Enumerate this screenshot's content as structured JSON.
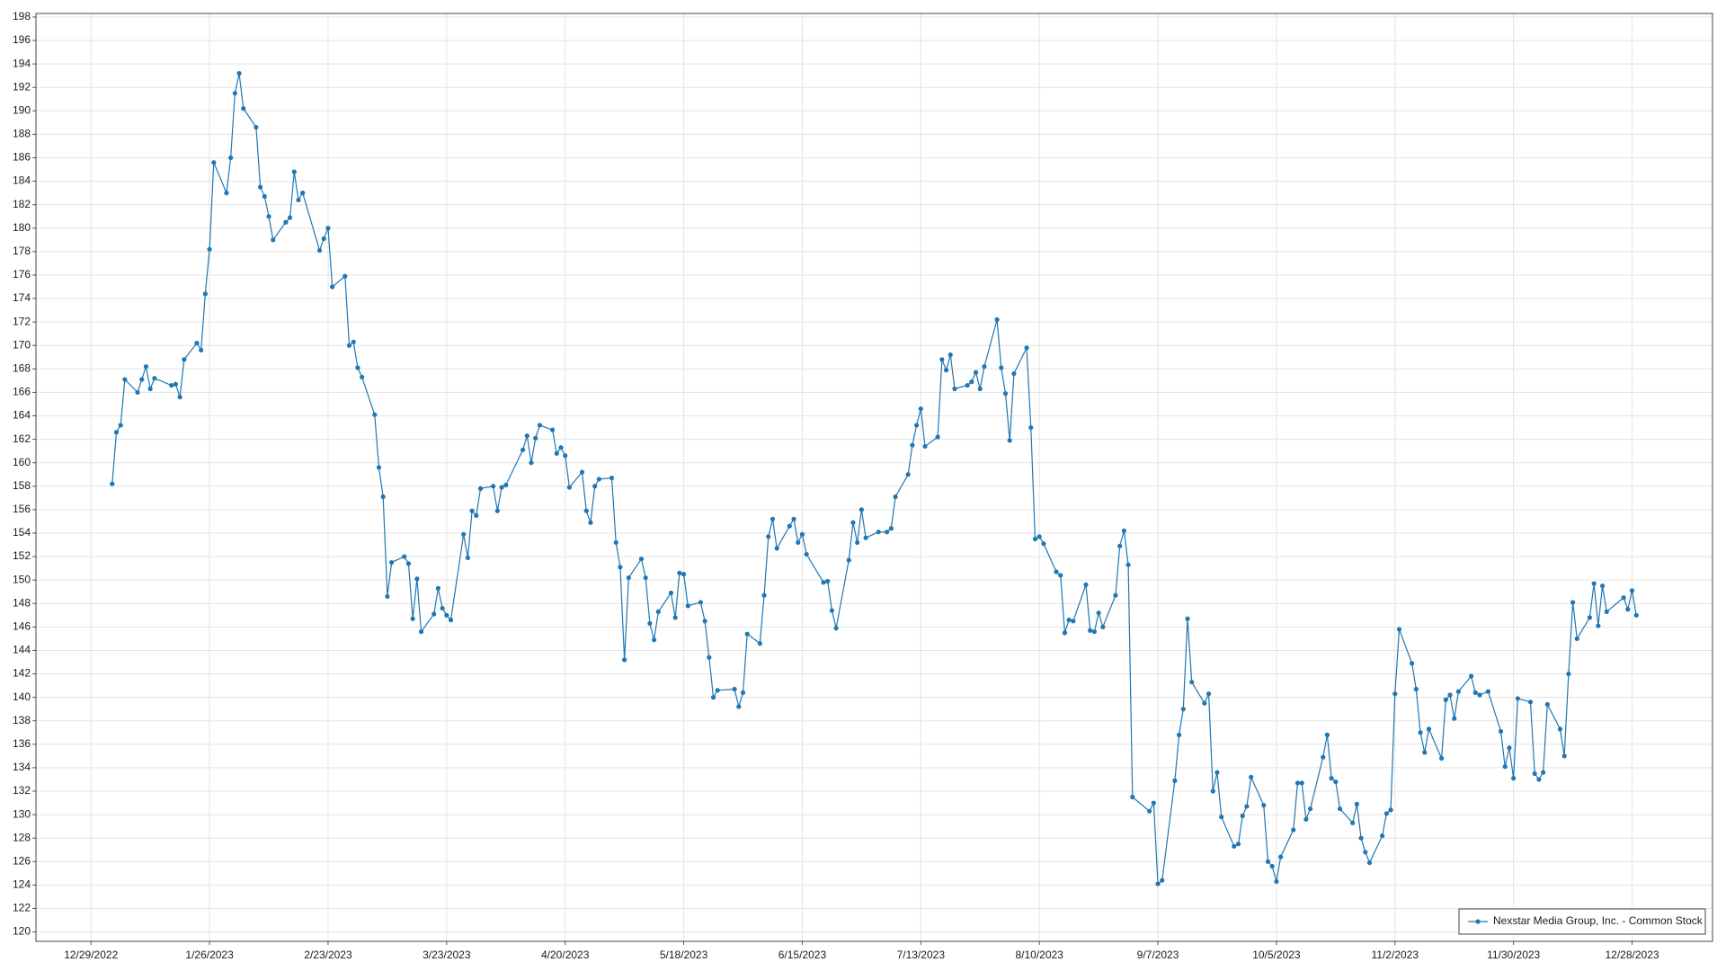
{
  "chart_data": {
    "type": "line",
    "x": [
      "1/3/2023",
      "1/4/2023",
      "1/5/2023",
      "1/6/2023",
      "1/9/2023",
      "1/10/2023",
      "1/11/2023",
      "1/12/2023",
      "1/13/2023",
      "1/17/2023",
      "1/18/2023",
      "1/19/2023",
      "1/20/2023",
      "1/23/2023",
      "1/24/2023",
      "1/25/2023",
      "1/26/2023",
      "1/27/2023",
      "1/30/2023",
      "1/31/2023",
      "2/1/2023",
      "2/2/2023",
      "2/3/2023",
      "2/6/2023",
      "2/7/2023",
      "2/8/2023",
      "2/9/2023",
      "2/10/2023",
      "2/13/2023",
      "2/14/2023",
      "2/15/2023",
      "2/16/2023",
      "2/17/2023",
      "2/21/2023",
      "2/22/2023",
      "2/23/2023",
      "2/24/2023",
      "2/27/2023",
      "2/28/2023",
      "3/1/2023",
      "3/2/2023",
      "3/3/2023",
      "3/6/2023",
      "3/7/2023",
      "3/8/2023",
      "3/9/2023",
      "3/10/2023",
      "3/13/2023",
      "3/14/2023",
      "3/15/2023",
      "3/16/2023",
      "3/17/2023",
      "3/20/2023",
      "3/21/2023",
      "3/22/2023",
      "3/23/2023",
      "3/24/2023",
      "3/27/2023",
      "3/28/2023",
      "3/29/2023",
      "3/30/2023",
      "3/31/2023",
      "4/3/2023",
      "4/4/2023",
      "4/5/2023",
      "4/6/2023",
      "4/10/2023",
      "4/11/2023",
      "4/12/2023",
      "4/13/2023",
      "4/14/2023",
      "4/17/2023",
      "4/18/2023",
      "4/19/2023",
      "4/20/2023",
      "4/21/2023",
      "4/24/2023",
      "4/25/2023",
      "4/26/2023",
      "4/27/2023",
      "4/28/2023",
      "5/1/2023",
      "5/2/2023",
      "5/3/2023",
      "5/4/2023",
      "5/5/2023",
      "5/8/2023",
      "5/9/2023",
      "5/10/2023",
      "5/11/2023",
      "5/12/2023",
      "5/15/2023",
      "5/16/2023",
      "5/17/2023",
      "5/18/2023",
      "5/19/2023",
      "5/22/2023",
      "5/23/2023",
      "5/24/2023",
      "5/25/2023",
      "5/26/2023",
      "5/30/2023",
      "5/31/2023",
      "6/1/2023",
      "6/2/2023",
      "6/5/2023",
      "6/6/2023",
      "6/7/2023",
      "6/8/2023",
      "6/9/2023",
      "6/12/2023",
      "6/13/2023",
      "6/14/2023",
      "6/15/2023",
      "6/16/2023",
      "6/20/2023",
      "6/21/2023",
      "6/22/2023",
      "6/23/2023",
      "6/26/2023",
      "6/27/2023",
      "6/28/2023",
      "6/29/2023",
      "6/30/2023",
      "7/3/2023",
      "7/5/2023",
      "7/6/2023",
      "7/7/2023",
      "7/10/2023",
      "7/11/2023",
      "7/12/2023",
      "7/13/2023",
      "7/14/2023",
      "7/17/2023",
      "7/18/2023",
      "7/19/2023",
      "7/20/2023",
      "7/21/2023",
      "7/24/2023",
      "7/25/2023",
      "7/26/2023",
      "7/27/2023",
      "7/28/2023",
      "7/31/2023",
      "8/1/2023",
      "8/2/2023",
      "8/3/2023",
      "8/4/2023",
      "8/7/2023",
      "8/8/2023",
      "8/9/2023",
      "8/10/2023",
      "8/11/2023",
      "8/14/2023",
      "8/15/2023",
      "8/16/2023",
      "8/17/2023",
      "8/18/2023",
      "8/21/2023",
      "8/22/2023",
      "8/23/2023",
      "8/24/2023",
      "8/25/2023",
      "8/28/2023",
      "8/29/2023",
      "8/30/2023",
      "8/31/2023",
      "9/1/2023",
      "9/5/2023",
      "9/6/2023",
      "9/7/2023",
      "9/8/2023",
      "9/11/2023",
      "9/12/2023",
      "9/13/2023",
      "9/14/2023",
      "9/15/2023",
      "9/18/2023",
      "9/19/2023",
      "9/20/2023",
      "9/21/2023",
      "9/22/2023",
      "9/25/2023",
      "9/26/2023",
      "9/27/2023",
      "9/28/2023",
      "9/29/2023",
      "10/2/2023",
      "10/3/2023",
      "10/4/2023",
      "10/5/2023",
      "10/6/2023",
      "10/9/2023",
      "10/10/2023",
      "10/11/2023",
      "10/12/2023",
      "10/13/2023",
      "10/16/2023",
      "10/17/2023",
      "10/18/2023",
      "10/19/2023",
      "10/20/2023",
      "10/23/2023",
      "10/24/2023",
      "10/25/2023",
      "10/26/2023",
      "10/27/2023",
      "10/30/2023",
      "10/31/2023",
      "11/1/2023",
      "11/2/2023",
      "11/3/2023",
      "11/6/2023",
      "11/7/2023",
      "11/8/2023",
      "11/9/2023",
      "11/10/2023",
      "11/13/2023",
      "11/14/2023",
      "11/15/2023",
      "11/16/2023",
      "11/17/2023",
      "11/20/2023",
      "11/21/2023",
      "11/22/2023",
      "11/24/2023",
      "11/27/2023",
      "11/28/2023",
      "11/29/2023",
      "11/30/2023",
      "12/1/2023",
      "12/4/2023",
      "12/5/2023",
      "12/6/2023",
      "12/7/2023",
      "12/8/2023",
      "12/11/2023",
      "12/12/2023",
      "12/13/2023",
      "12/14/2023",
      "12/15/2023",
      "12/18/2023",
      "12/19/2023",
      "12/20/2023",
      "12/21/2023",
      "12/22/2023",
      "12/26/2023",
      "12/27/2023",
      "12/28/2023",
      "12/29/2023"
    ],
    "series": [
      {
        "name": "Nexstar Media Group, Inc. - Common Stock",
        "color": "#1f77b4",
        "values": [
          158.2,
          162.6,
          163.2,
          167.1,
          166,
          167.1,
          168.2,
          166.3,
          167.2,
          166.6,
          166.7,
          165.6,
          168.8,
          170.2,
          169.6,
          174.4,
          178.2,
          185.6,
          183,
          186,
          191.5,
          193.2,
          190.2,
          188.6,
          183.5,
          182.7,
          181,
          179,
          180.5,
          180.9,
          184.8,
          182.4,
          183,
          178.1,
          179.1,
          180,
          175,
          175.9,
          170,
          170.3,
          168.1,
          167.3,
          164.1,
          159.6,
          157.1,
          148.6,
          151.5,
          152,
          151.4,
          146.7,
          150.1,
          145.6,
          147.1,
          149.3,
          147.6,
          147,
          146.6,
          153.9,
          151.9,
          155.9,
          155.5,
          157.8,
          158,
          155.9,
          157.9,
          158.1,
          161.1,
          162.3,
          160,
          162.1,
          163.2,
          162.8,
          160.8,
          161.3,
          160.6,
          157.9,
          159.2,
          155.9,
          154.9,
          158,
          158.6,
          158.7,
          153.2,
          151.1,
          143.2,
          150.2,
          151.8,
          150.2,
          146.3,
          144.9,
          147.3,
          148.9,
          146.8,
          150.6,
          150.5,
          147.8,
          148.1,
          146.5,
          143.4,
          140,
          140.6,
          140.7,
          139.2,
          140.4,
          145.4,
          144.6,
          148.7,
          153.7,
          155.2,
          152.7,
          154.6,
          155.2,
          153.2,
          153.9,
          152.2,
          149.8,
          149.9,
          147.4,
          145.9,
          151.7,
          154.9,
          153.2,
          156,
          153.6,
          154.1,
          154.1,
          154.4,
          157.1,
          159,
          161.5,
          163.2,
          164.6,
          161.4,
          162.2,
          168.8,
          167.9,
          169.2,
          166.3,
          166.6,
          166.9,
          167.7,
          166.3,
          168.2,
          172.2,
          168.1,
          165.9,
          161.9,
          167.6,
          169.8,
          163,
          153.5,
          153.7,
          153.1,
          150.7,
          150.4,
          145.5,
          146.6,
          146.5,
          149.6,
          145.7,
          145.6,
          147.2,
          146,
          148.7,
          152.9,
          154.2,
          151.3,
          131.5,
          130.3,
          131,
          124.1,
          124.4,
          132.9,
          136.8,
          139,
          146.7,
          141.3,
          139.5,
          140.3,
          132,
          133.6,
          129.8,
          127.3,
          127.5,
          129.9,
          130.7,
          133.2,
          130.8,
          126,
          125.6,
          124.3,
          126.4,
          128.7,
          132.7,
          132.7,
          129.6,
          130.5,
          134.9,
          136.8,
          133.1,
          132.8,
          130.5,
          129.3,
          130.9,
          128,
          126.8,
          125.9,
          128.2,
          130.1,
          130.4,
          140.3,
          145.8,
          142.9,
          140.7,
          137,
          135.3,
          137.3,
          134.8,
          139.8,
          140.2,
          138.2,
          140.5,
          141.8,
          140.4,
          140.2,
          140.5,
          137.1,
          134.1,
          135.7,
          133.1,
          139.9,
          139.6,
          133.5,
          133,
          133.6,
          139.4,
          137.3,
          135,
          142,
          148.1,
          145,
          146.8,
          149.7,
          146.1,
          149.5,
          147.3,
          148.5,
          147.5,
          149.1,
          147
        ]
      }
    ],
    "xlim": [
      "12/16/2022",
      "1/16/2024"
    ],
    "xticks": [
      "12/29/2022",
      "1/26/2023",
      "2/23/2023",
      "3/23/2023",
      "4/20/2023",
      "5/18/2023",
      "6/15/2023",
      "7/13/2023",
      "8/10/2023",
      "9/7/2023",
      "10/5/2023",
      "11/2/2023",
      "11/30/2023",
      "12/28/2023"
    ],
    "ylim": [
      119.2,
      198.3
    ],
    "yticks": [
      120,
      122,
      124,
      126,
      128,
      130,
      132,
      134,
      136,
      138,
      140,
      142,
      144,
      146,
      148,
      150,
      152,
      154,
      156,
      158,
      160,
      162,
      164,
      166,
      168,
      170,
      172,
      174,
      176,
      178,
      180,
      182,
      184,
      186,
      188,
      190,
      192,
      194,
      196,
      198
    ],
    "grid": true,
    "legend": "lower right"
  }
}
